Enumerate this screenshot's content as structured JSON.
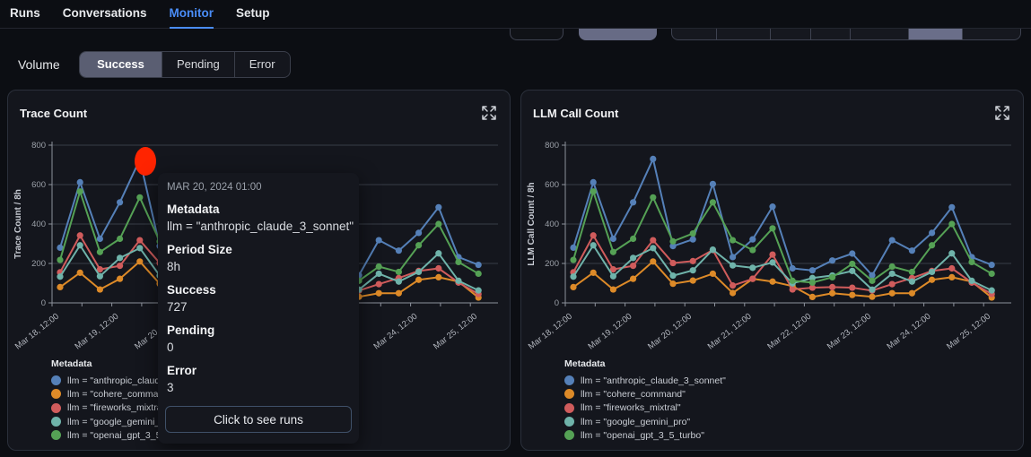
{
  "nav": {
    "items": [
      {
        "label": "Runs",
        "active": false
      },
      {
        "label": "Conversations",
        "active": false
      },
      {
        "label": "Monitor",
        "active": true
      },
      {
        "label": "Setup",
        "active": false
      }
    ]
  },
  "toolbar": {
    "section_label": "Volume",
    "tabs": [
      {
        "label": "Success",
        "active": true
      },
      {
        "label": "Pending",
        "active": false
      },
      {
        "label": "Error",
        "active": false
      }
    ]
  },
  "icons": {
    "panel_action": "expand-arrows"
  },
  "colors": {
    "accent_blue": "#4a8df8",
    "highlight_red": "#ff2400",
    "selected_tab_bg": "#5a5e72",
    "segment_purple": "#6a6e89"
  },
  "tooltip": {
    "timestamp": "MAR 20, 2024 01:00",
    "rows": [
      {
        "label": "Metadata",
        "value": "llm = \"anthropic_claude_3_sonnet\""
      },
      {
        "label": "Period Size",
        "value": "8h"
      },
      {
        "label": "Success",
        "value": "727"
      },
      {
        "label": "Pending",
        "value": "0"
      },
      {
        "label": "Error",
        "value": "3"
      }
    ],
    "button_label": "Click to see runs"
  },
  "chart_data": [
    {
      "type": "line",
      "title": "Trace Count",
      "ylabel": "Trace Count / 8h",
      "ylim": [
        0,
        800
      ],
      "y_ticks": [
        0,
        200,
        400,
        600,
        800
      ],
      "period": "8h",
      "grid": true,
      "legend_title": "Metadata",
      "legend_position": "bottom-left",
      "x_tick_labels": [
        "Mar 18, 12:00",
        "Mar 19, 12:00",
        "Mar 20, 12:00",
        "Mar 21, 12:00",
        "Mar 22, 12:00",
        "Mar 23, 12:00",
        "Mar 24, 12:00",
        "Mar 25, 12:00"
      ],
      "highlight": {
        "series": "llm = \"anthropic_claude_3_sonnet\"",
        "time": "Mar 20, 2024 01:00",
        "success": 727,
        "pending": 0,
        "error": 3
      },
      "series": [
        {
          "name": "llm = \"anthropic_claude_3_sonnet\"",
          "color": "#5580b8",
          "values": [
            280,
            612,
            325,
            510,
            727,
            288,
            322,
            603,
            232,
            322,
            488,
            175,
            165,
            215,
            250,
            140,
            318,
            265,
            355,
            485,
            232,
            193
          ]
        },
        {
          "name": "llm = \"cohere_command\"",
          "color": "#dd8a28",
          "values": [
            80,
            153,
            68,
            122,
            210,
            97,
            113,
            148,
            50,
            122,
            108,
            85,
            30,
            49,
            40,
            31,
            49,
            49,
            117,
            130,
            108,
            27
          ]
        },
        {
          "name": "llm = \"fireworks_mixtral\"",
          "color": "#d05c5c",
          "values": [
            155,
            342,
            170,
            188,
            318,
            202,
            212,
            268,
            88,
            122,
            245,
            68,
            77,
            80,
            77,
            62,
            95,
            126,
            162,
            175,
            103,
            45
          ]
        },
        {
          "name": "llm = \"google_gemini_pro\"",
          "color": "#6fb3aa",
          "values": [
            133,
            292,
            135,
            228,
            278,
            138,
            165,
            270,
            190,
            178,
            205,
            99,
            126,
            139,
            162,
            67,
            148,
            108,
            157,
            251,
            112,
            63
          ]
        },
        {
          "name": "llm = \"openai_gpt_3_5_turbo\"",
          "color": "#55a155",
          "values": [
            218,
            565,
            258,
            325,
            535,
            312,
            352,
            510,
            318,
            268,
            378,
            112,
            103,
            130,
            198,
            112,
            184,
            157,
            292,
            400,
            207,
            148
          ]
        }
      ]
    },
    {
      "type": "line",
      "title": "LLM Call Count",
      "ylabel": "LLM Call Count / 8h",
      "ylim": [
        0,
        800
      ],
      "y_ticks": [
        0,
        200,
        400,
        600,
        800
      ],
      "period": "8h",
      "grid": true,
      "legend_title": "Metadata",
      "legend_position": "bottom-left",
      "x_tick_labels": [
        "Mar 18, 12:00",
        "Mar 19, 12:00",
        "Mar 20, 12:00",
        "Mar 21, 12:00",
        "Mar 22, 12:00",
        "Mar 23, 12:00",
        "Mar 24, 12:00",
        "Mar 25, 12:00"
      ],
      "series": [
        {
          "name": "llm = \"anthropic_claude_3_sonnet\"",
          "color": "#5580b8",
          "values": [
            280,
            612,
            325,
            510,
            730,
            288,
            322,
            603,
            232,
            322,
            488,
            175,
            165,
            215,
            250,
            140,
            318,
            265,
            355,
            485,
            232,
            193
          ]
        },
        {
          "name": "llm = \"cohere_command\"",
          "color": "#dd8a28",
          "values": [
            80,
            153,
            68,
            122,
            210,
            97,
            113,
            148,
            50,
            122,
            108,
            85,
            30,
            49,
            40,
            31,
            49,
            49,
            117,
            130,
            108,
            27
          ]
        },
        {
          "name": "llm = \"fireworks_mixtral\"",
          "color": "#d05c5c",
          "values": [
            155,
            342,
            170,
            188,
            318,
            202,
            212,
            268,
            88,
            122,
            245,
            68,
            77,
            80,
            77,
            62,
            95,
            126,
            162,
            175,
            103,
            45
          ]
        },
        {
          "name": "llm = \"google_gemini_pro\"",
          "color": "#6fb3aa",
          "values": [
            133,
            292,
            135,
            228,
            278,
            138,
            165,
            270,
            190,
            178,
            205,
            99,
            126,
            139,
            162,
            67,
            148,
            108,
            157,
            251,
            112,
            63
          ]
        },
        {
          "name": "llm = \"openai_gpt_3_5_turbo\"",
          "color": "#55a155",
          "values": [
            218,
            565,
            258,
            325,
            535,
            312,
            352,
            510,
            318,
            268,
            378,
            112,
            103,
            130,
            198,
            112,
            184,
            157,
            292,
            400,
            207,
            148
          ]
        }
      ]
    }
  ]
}
